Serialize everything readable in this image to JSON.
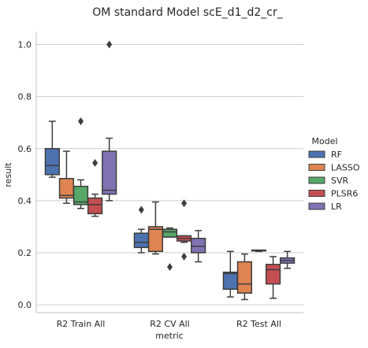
{
  "chart_data": {
    "type": "box",
    "title": "OM standard Model scE_d1_d2_cr_",
    "xlabel": "metric",
    "ylabel": "result",
    "categories": [
      "R2 Train All",
      "R2 CV All",
      "R2 Test All"
    ],
    "ylim": [
      -0.03,
      1.05
    ],
    "yticks": [
      "0.0",
      "0.2",
      "0.4",
      "0.6",
      "0.8",
      "1.0"
    ],
    "grid": "horizontal",
    "legend": {
      "title": "Model",
      "placement": "right",
      "entries": [
        "RF",
        "LASSO",
        "SVR",
        "PLSR6",
        "LR"
      ]
    },
    "colors": {
      "RF": "#4c72b0",
      "LASSO": "#dd8452",
      "SVR": "#55a868",
      "PLSR6": "#c44e52",
      "LR": "#8172b3",
      "line": "#3d3d3d",
      "grid": "#cccccc"
    },
    "series": [
      {
        "name": "RF",
        "boxes": [
          {
            "whislo": 0.49,
            "q1": 0.5,
            "med": 0.535,
            "q3": 0.6,
            "whishi": 0.705,
            "fliers": []
          },
          {
            "whislo": 0.2,
            "q1": 0.22,
            "med": 0.24,
            "q3": 0.275,
            "whishi": 0.29,
            "fliers": [
              0.365
            ]
          },
          {
            "whislo": 0.03,
            "q1": 0.06,
            "med": 0.12,
            "q3": 0.125,
            "whishi": 0.205,
            "fliers": []
          }
        ]
      },
      {
        "name": "LASSO",
        "boxes": [
          {
            "whislo": 0.39,
            "q1": 0.41,
            "med": 0.42,
            "q3": 0.485,
            "whishi": 0.59,
            "fliers": []
          },
          {
            "whislo": 0.195,
            "q1": 0.205,
            "med": 0.29,
            "q3": 0.3,
            "whishi": 0.395,
            "fliers": []
          },
          {
            "whislo": 0.02,
            "q1": 0.045,
            "med": 0.08,
            "q3": 0.165,
            "whishi": 0.195,
            "fliers": []
          }
        ]
      },
      {
        "name": "SVR",
        "boxes": [
          {
            "whislo": 0.37,
            "q1": 0.385,
            "med": 0.395,
            "q3": 0.455,
            "whishi": 0.48,
            "fliers": [
              0.705
            ]
          },
          {
            "whislo": 0.26,
            "q1": 0.26,
            "med": 0.28,
            "q3": 0.29,
            "whishi": 0.295,
            "fliers": [
              0.145
            ]
          },
          {
            "whislo": 0.205,
            "q1": 0.207,
            "med": 0.208,
            "q3": 0.21,
            "whishi": 0.21,
            "fliers": []
          }
        ]
      },
      {
        "name": "PLSR6",
        "boxes": [
          {
            "whislo": 0.34,
            "q1": 0.35,
            "med": 0.385,
            "q3": 0.41,
            "whishi": 0.425,
            "fliers": [
              0.545
            ]
          },
          {
            "whislo": 0.24,
            "q1": 0.245,
            "med": 0.255,
            "q3": 0.265,
            "whishi": 0.265,
            "fliers": [
              0.39,
              0.185
            ]
          },
          {
            "whislo": 0.025,
            "q1": 0.08,
            "med": 0.135,
            "q3": 0.155,
            "whishi": 0.185,
            "fliers": []
          }
        ]
      },
      {
        "name": "LR",
        "boxes": [
          {
            "whislo": 0.4,
            "q1": 0.425,
            "med": 0.44,
            "q3": 0.59,
            "whishi": 0.64,
            "fliers": [
              1.0
            ]
          },
          {
            "whislo": 0.165,
            "q1": 0.2,
            "med": 0.225,
            "q3": 0.255,
            "whishi": 0.285,
            "fliers": []
          },
          {
            "whislo": 0.14,
            "q1": 0.16,
            "med": 0.17,
            "q3": 0.18,
            "whishi": 0.205,
            "fliers": []
          }
        ]
      }
    ]
  }
}
